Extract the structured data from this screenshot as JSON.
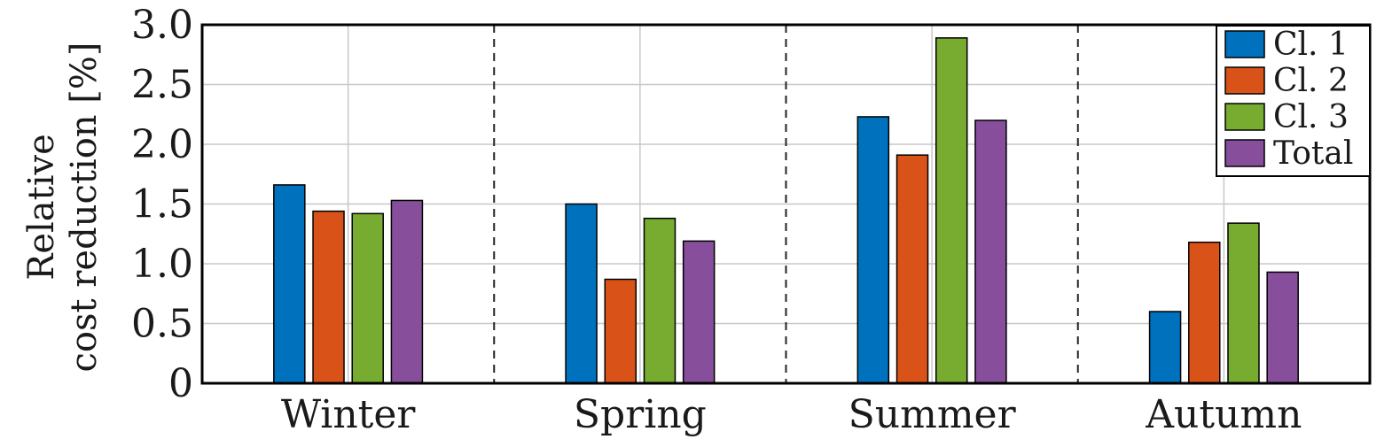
{
  "chart_data": {
    "type": "bar",
    "title": "",
    "xlabel": "",
    "ylabel_lines": [
      "Relative",
      "cost reduction [%]"
    ],
    "categories": [
      "Winter",
      "Spring",
      "Summer",
      "Autumn"
    ],
    "series": [
      {
        "name": "Cl. 1",
        "color": "#0072bd",
        "values": [
          1.66,
          1.5,
          2.23,
          0.6
        ]
      },
      {
        "name": "Cl. 2",
        "color": "#d95319",
        "values": [
          1.44,
          0.87,
          1.91,
          1.18
        ]
      },
      {
        "name": "Cl. 3",
        "color": "#77ac30",
        "values": [
          1.42,
          1.38,
          2.89,
          1.34
        ]
      },
      {
        "name": "Total",
        "color": "#874e9b",
        "values": [
          1.53,
          1.19,
          2.2,
          0.93
        ]
      }
    ],
    "ylim": [
      0,
      3.0
    ],
    "yticks": [
      0,
      0.5,
      1.0,
      1.5,
      2.0,
      2.5,
      3.0
    ],
    "ytick_labels": [
      "0",
      "0.5",
      "1.0",
      "1.5",
      "2.0",
      "2.5",
      "3.0"
    ],
    "grid": true,
    "category_separators": "dashed",
    "legend_position": "top-right"
  }
}
